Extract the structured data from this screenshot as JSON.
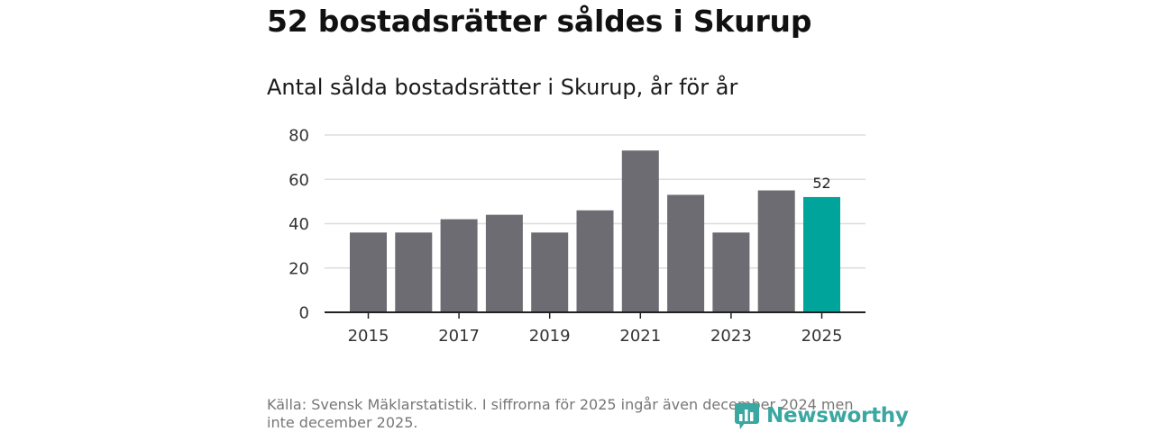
{
  "title": "52 bostadsrätter såldes i Skurup",
  "subtitle": "Antal sålda bostadsrätter i Skurup, år för år",
  "source": "Källa: Svensk Mäklarstatistik. I siffrorna för 2025 ingår även december 2024 men inte december 2025.",
  "logo": "Newsworthy",
  "colors": {
    "bar": "#6d6c72",
    "highlight": "#00a49a",
    "grid": "#dddddd",
    "axis": "#222222",
    "logo": "#3aa7a0"
  },
  "chart_data": {
    "type": "bar",
    "title": "Antal sålda bostadsrätter i Skurup, år för år",
    "xlabel": "",
    "ylabel": "",
    "categories": [
      "2015",
      "2016",
      "2017",
      "2018",
      "2019",
      "2020",
      "2021",
      "2022",
      "2023",
      "2024",
      "2025"
    ],
    "values": [
      36,
      36,
      42,
      44,
      36,
      46,
      73,
      53,
      36,
      55,
      52
    ],
    "ylim": [
      0,
      80
    ],
    "yticks": [
      0,
      20,
      40,
      60,
      80
    ],
    "xtick_labels": [
      "2015",
      "2017",
      "2019",
      "2021",
      "2023",
      "2025"
    ],
    "highlight_index": 10,
    "data_labels": [
      {
        "index": 10,
        "text": "52"
      }
    ],
    "grid": true
  }
}
